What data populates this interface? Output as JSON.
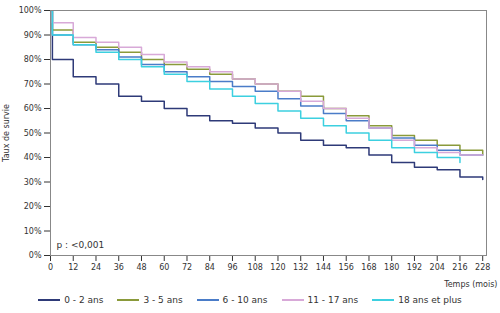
{
  "chart_data": {
    "type": "line",
    "x_label": "Temps (mois)",
    "y_label": "Taux de survie",
    "annotation": "p : <0,001",
    "x": [
      0,
      1,
      12,
      24,
      36,
      48,
      60,
      72,
      84,
      96,
      108,
      120,
      132,
      144,
      156,
      168,
      180,
      192,
      204,
      216,
      228
    ],
    "series": [
      {
        "name": "0 - 2 ans",
        "color": "#2e3a78",
        "values": [
          100,
          80,
          73,
          70,
          65,
          63,
          60,
          57,
          55,
          54,
          52,
          50,
          47,
          45,
          44,
          41,
          38,
          36,
          35,
          32,
          31
        ]
      },
      {
        "name": "3 - 5 ans",
        "color": "#8a9a3a",
        "values": [
          100,
          92,
          87,
          85,
          83,
          80,
          78,
          76,
          74,
          72,
          70,
          67,
          65,
          60,
          57,
          53,
          49,
          47,
          45,
          43,
          41
        ]
      },
      {
        "name": "6 - 10 ans",
        "color": "#4a7cc8",
        "values": [
          100,
          90,
          86,
          84,
          81,
          78,
          75,
          73,
          71,
          69,
          67,
          64,
          61,
          58,
          55,
          52,
          48,
          45,
          43,
          41,
          41
        ]
      },
      {
        "name": "11 - 17 ans",
        "color": "#d8a9d8",
        "values": [
          100,
          95,
          89,
          87,
          85,
          82,
          79,
          77,
          75,
          72,
          70,
          67,
          63,
          60,
          56,
          52,
          47,
          44,
          42,
          41,
          41
        ]
      },
      {
        "name": "18 ans et plus",
        "color": "#3cd0e0",
        "values": [
          100,
          90,
          86,
          83,
          80,
          77,
          74,
          71,
          68,
          65,
          62,
          59,
          56,
          53,
          50,
          47,
          44,
          42,
          40,
          38,
          null
        ]
      }
    ],
    "xlim": [
      0,
      230
    ],
    "xticks": [
      0,
      12,
      24,
      36,
      48,
      60,
      72,
      84,
      96,
      108,
      120,
      132,
      144,
      156,
      168,
      180,
      192,
      204,
      216,
      228
    ],
    "ylim": [
      0,
      100
    ],
    "yticks": [
      {
        "value": 0,
        "label": "0%"
      },
      {
        "value": 10,
        "label": "10%"
      },
      {
        "value": 20,
        "label": "20%"
      },
      {
        "value": 30,
        "label": "30%"
      },
      {
        "value": 40,
        "label": "40%"
      },
      {
        "value": 50,
        "label": "50%"
      },
      {
        "value": 60,
        "label": "60%"
      },
      {
        "value": 70,
        "label": "70%"
      },
      {
        "value": 80,
        "label": "80%"
      },
      {
        "value": 90,
        "label": "90%"
      },
      {
        "value": 100,
        "label": "100%"
      }
    ],
    "grid": false,
    "legend": "bottom"
  }
}
